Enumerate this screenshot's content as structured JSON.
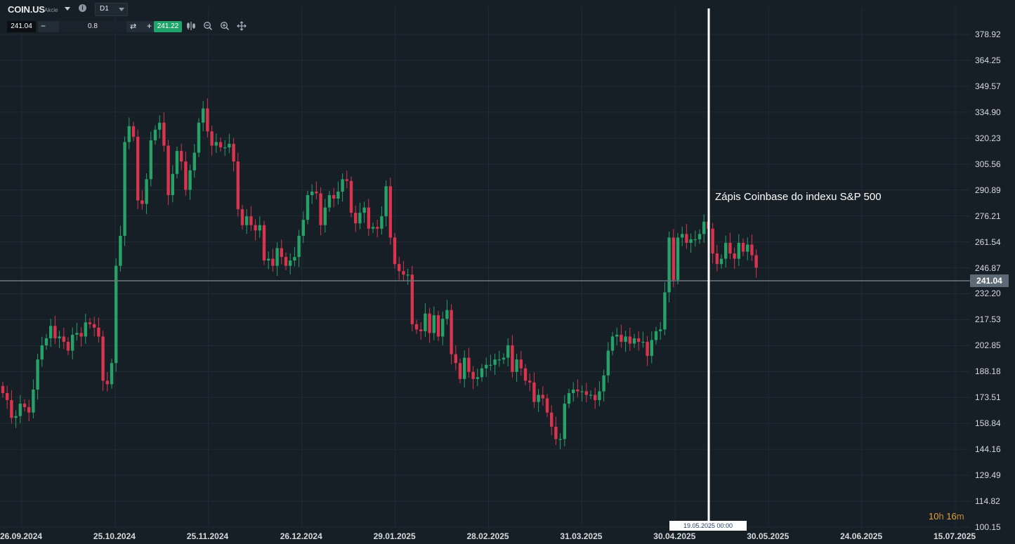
{
  "toolbar": {
    "symbol": "COIN.US",
    "symbol_type": "Akcie",
    "info_icon": "i",
    "timeframe": "D1",
    "bid": "241.04",
    "minus": "−",
    "quantity": "0.8",
    "swap_icon": "⇄",
    "plus": "+",
    "ask": "241.22",
    "tool_icons": [
      "indicators-icon",
      "zoom-out-icon",
      "zoom-in-icon",
      "crosshair-move-icon"
    ]
  },
  "annotation": {
    "text": "Zápis Coinbase do indexu S&P 500"
  },
  "countdown": {
    "hours": "10",
    "hours_unit": "h",
    "minutes": "16",
    "minutes_unit": "m"
  },
  "colors": {
    "background": "#161e26",
    "up": "#26a269",
    "down": "#d9344e",
    "grid": "#222c35",
    "price_line": "#6b7884",
    "event_line": "#ffffff"
  },
  "chart_data": {
    "type": "candlestick",
    "instrument": "COIN.US",
    "timeframe": "D1",
    "y_ticks": [
      "378.92",
      "364.25",
      "349.57",
      "334.90",
      "320.23",
      "305.56",
      "290.89",
      "276.21",
      "261.54",
      "246.87",
      "232.20",
      "217.53",
      "202.85",
      "188.18",
      "173.51",
      "158.84",
      "144.16",
      "129.49",
      "114.82",
      "100.15"
    ],
    "x_ticks": [
      "26.09.2024",
      "25.10.2024",
      "25.11.2024",
      "26.12.2024",
      "29.01.2025",
      "28.02.2025",
      "31.03.2025",
      "30.04.2025",
      "30.05.2025",
      "24.06.2025",
      "15.07.2025"
    ],
    "last_price": "241.04",
    "crosshair_date": "19.05.2025 00:00",
    "event": {
      "date": "19.05.2025",
      "label": "Zápis Coinbase do indexu S&P 500"
    },
    "closes": [
      176,
      172,
      162,
      163,
      170,
      168,
      165,
      178,
      195,
      203,
      207,
      214,
      207,
      208,
      205,
      200,
      209,
      210,
      208,
      216,
      215,
      213,
      208,
      183,
      181,
      193,
      248,
      265,
      318,
      327,
      321,
      285,
      283,
      297,
      319,
      325,
      329,
      316,
      288,
      300,
      313,
      307,
      291,
      302,
      312,
      329,
      337,
      324,
      316,
      318,
      315,
      315,
      317,
      307,
      280,
      271,
      276,
      271,
      268,
      271,
      251,
      252,
      248,
      258,
      253,
      248,
      251,
      253,
      265,
      274,
      288,
      290,
      289,
      271,
      281,
      288,
      286,
      290,
      297,
      296,
      278,
      272,
      278,
      281,
      269,
      270,
      269,
      276,
      293,
      264,
      249,
      245,
      243,
      243,
      215,
      212,
      211,
      221,
      210,
      220,
      208,
      218,
      223,
      198,
      193,
      184,
      196,
      188,
      184,
      185,
      190,
      192,
      192,
      195,
      195,
      196,
      203,
      188,
      195,
      190,
      183,
      182,
      171,
      175,
      173,
      165,
      157,
      150,
      150,
      170,
      176,
      178,
      177,
      177,
      175,
      175,
      172,
      177,
      186,
      200,
      208,
      209,
      205,
      208,
      204,
      207,
      205,
      205,
      197,
      206,
      211,
      212,
      233,
      264,
      240,
      264,
      266,
      261,
      263,
      263,
      266,
      273,
      269,
      255,
      249,
      252,
      261,
      255,
      252,
      261,
      256,
      260,
      254,
      247
    ]
  }
}
